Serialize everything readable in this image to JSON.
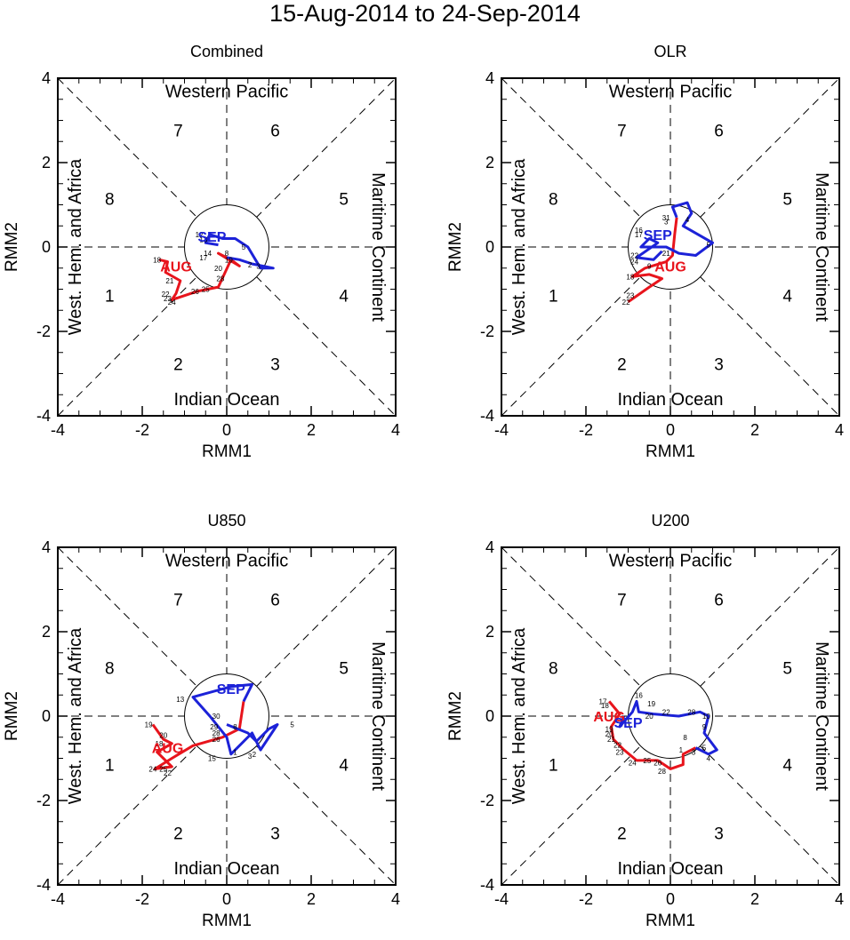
{
  "title": "15-Aug-2014 to 24-Sep-2014",
  "common": {
    "xlabel": "RMM1",
    "ylabel": "RMM2",
    "ticks": [
      "-4",
      "-2",
      "0",
      "2",
      "4"
    ],
    "regions": {
      "top": "Western Pacific",
      "bottom": "Indian Ocean",
      "left": "West. Hem. and Africa",
      "right": "Maritime Continent"
    },
    "phase_labels": [
      "1",
      "2",
      "3",
      "4",
      "5",
      "6",
      "7",
      "8"
    ],
    "colors": {
      "aug": "#e8141c",
      "sep": "#1c22d8"
    }
  },
  "chart_data": [
    {
      "type": "line",
      "title": "Combined",
      "xlabel": "RMM1",
      "ylabel": "RMM2",
      "xlim": [
        -4,
        4
      ],
      "ylim": [
        -4,
        4
      ],
      "series": [
        {
          "name": "AUG",
          "label": "AUG",
          "label_at": [
            -1.2,
            -0.45
          ],
          "color": "#e8141c",
          "points": [
            [
              -1.6,
              -0.3
            ],
            [
              -1.4,
              -0.35
            ],
            [
              -1.45,
              -0.6
            ],
            [
              -1.1,
              -0.8
            ],
            [
              -1.2,
              -1.1
            ],
            [
              -1.3,
              -1.25
            ],
            [
              -0.7,
              -1.05
            ],
            [
              -0.2,
              -0.95
            ],
            [
              0.1,
              -0.3
            ],
            [
              0.3,
              -0.45
            ],
            [
              -0.2,
              -0.15
            ],
            [
              0.0,
              -0.25
            ]
          ]
        },
        {
          "name": "SEP",
          "label": "SEP",
          "label_at": [
            -0.35,
            0.25
          ],
          "color": "#1c22d8",
          "points": [
            [
              0.0,
              -0.25
            ],
            [
              0.3,
              -0.3
            ],
            [
              0.6,
              -0.4
            ],
            [
              1.1,
              -0.5
            ],
            [
              0.8,
              -0.5
            ],
            [
              0.5,
              0.0
            ],
            [
              0.2,
              0.2
            ],
            [
              -0.1,
              0.2
            ],
            [
              -0.4,
              0.3
            ],
            [
              -0.5,
              0.1
            ],
            [
              -0.2,
              0.05
            ]
          ]
        }
      ],
      "day_labels": [
        {
          "t": "18",
          "x": -1.65,
          "y": -0.3
        },
        {
          "t": "21",
          "x": -1.35,
          "y": -0.8
        },
        {
          "t": "22",
          "x": -1.45,
          "y": -1.12
        },
        {
          "t": "23",
          "x": -1.4,
          "y": -1.22
        },
        {
          "t": "24",
          "x": -1.3,
          "y": -1.3
        },
        {
          "t": "26",
          "x": -0.75,
          "y": -1.05
        },
        {
          "t": "28",
          "x": -0.15,
          "y": -0.75
        },
        {
          "t": "25",
          "x": -0.5,
          "y": -1.0
        },
        {
          "t": "12",
          "x": -0.65,
          "y": 0.3
        },
        {
          "t": "13",
          "x": -0.55,
          "y": 0.18
        },
        {
          "t": "17",
          "x": -0.55,
          "y": -0.25
        },
        {
          "t": "14",
          "x": -0.45,
          "y": -0.15
        },
        {
          "t": "19",
          "x": 0.05,
          "y": -0.3
        },
        {
          "t": "20",
          "x": -0.2,
          "y": -0.5
        },
        {
          "t": "8",
          "x": 0.0,
          "y": -0.15
        },
        {
          "t": "5",
          "x": 0.4,
          "y": 0.0
        },
        {
          "t": "3",
          "x": 0.75,
          "y": -0.45
        },
        {
          "t": "2",
          "x": 0.55,
          "y": -0.42
        }
      ]
    },
    {
      "type": "line",
      "title": "OLR",
      "xlabel": "RMM1",
      "ylabel": "RMM2",
      "xlim": [
        -4,
        4
      ],
      "ylim": [
        -4,
        4
      ],
      "series": [
        {
          "name": "AUG",
          "label": "AUG",
          "label_at": [
            0.0,
            -0.45
          ],
          "color": "#e8141c",
          "points": [
            [
              -1.0,
              -1.3
            ],
            [
              -0.5,
              -0.95
            ],
            [
              -0.2,
              -0.75
            ],
            [
              -0.5,
              -0.65
            ],
            [
              -0.9,
              -0.7
            ],
            [
              -0.6,
              -0.5
            ],
            [
              -0.1,
              -0.35
            ],
            [
              0.05,
              -0.2
            ],
            [
              0.1,
              0.3
            ],
            [
              0.15,
              0.7
            ]
          ]
        },
        {
          "name": "SEP",
          "label": "SEP",
          "label_at": [
            -0.3,
            0.3
          ],
          "color": "#1c22d8",
          "points": [
            [
              0.15,
              0.7
            ],
            [
              0.05,
              0.95
            ],
            [
              0.4,
              1.05
            ],
            [
              0.5,
              0.8
            ],
            [
              0.3,
              0.5
            ],
            [
              1.0,
              0.1
            ],
            [
              0.6,
              -0.2
            ],
            [
              0.2,
              -0.15
            ],
            [
              -0.1,
              0.0
            ],
            [
              -0.7,
              0.0
            ],
            [
              -0.5,
              0.2
            ],
            [
              -0.3,
              0.1
            ],
            [
              -0.8,
              -0.25
            ],
            [
              -0.4,
              -0.3
            ],
            [
              -0.2,
              -0.1
            ]
          ]
        }
      ],
      "day_labels": [
        {
          "t": "22",
          "x": -1.05,
          "y": -1.3
        },
        {
          "t": "23",
          "x": -0.95,
          "y": -1.15
        },
        {
          "t": "18",
          "x": -0.95,
          "y": -0.7
        },
        {
          "t": "16",
          "x": -0.75,
          "y": 0.4
        },
        {
          "t": "17",
          "x": -0.75,
          "y": 0.3
        },
        {
          "t": "22",
          "x": -0.85,
          "y": -0.2
        },
        {
          "t": "24",
          "x": -0.85,
          "y": -0.35
        },
        {
          "t": "31",
          "x": -0.1,
          "y": 0.7
        },
        {
          "t": "3",
          "x": -0.1,
          "y": 0.6
        },
        {
          "t": "4",
          "x": 0.4,
          "y": 0.65
        },
        {
          "t": "5",
          "x": 0.9,
          "y": 0.05
        },
        {
          "t": "21",
          "x": -0.1,
          "y": -0.15
        },
        {
          "t": "9",
          "x": -0.5,
          "y": -0.45
        }
      ]
    },
    {
      "type": "line",
      "title": "U850",
      "xlabel": "RMM1",
      "ylabel": "RMM2",
      "xlim": [
        -4,
        4
      ],
      "ylim": [
        -4,
        4
      ],
      "series": [
        {
          "name": "AUG",
          "label": "AUG",
          "label_at": [
            -1.4,
            -0.75
          ],
          "color": "#e8141c",
          "points": [
            [
              -1.75,
              -0.2
            ],
            [
              -1.5,
              -0.55
            ],
            [
              -1.3,
              -0.65
            ],
            [
              -1.65,
              -0.85
            ],
            [
              -1.3,
              -1.2
            ],
            [
              -1.7,
              -1.25
            ],
            [
              -1.3,
              -1.0
            ],
            [
              -0.8,
              -0.7
            ],
            [
              -0.1,
              -0.5
            ],
            [
              0.3,
              -0.3
            ],
            [
              0.4,
              0.35
            ]
          ]
        },
        {
          "name": "SEP",
          "label": "SEP",
          "label_at": [
            0.1,
            0.65
          ],
          "color": "#1c22d8",
          "points": [
            [
              0.4,
              0.35
            ],
            [
              0.6,
              0.75
            ],
            [
              0.1,
              0.7
            ],
            [
              -0.8,
              0.45
            ],
            [
              -0.4,
              0.0
            ],
            [
              0.0,
              -0.5
            ],
            [
              0.1,
              -0.9
            ],
            [
              0.6,
              -0.4
            ],
            [
              0.8,
              -0.8
            ],
            [
              1.2,
              -0.2
            ],
            [
              1.0,
              -0.3
            ],
            [
              0.7,
              -0.6
            ],
            [
              0.5,
              -0.4
            ],
            [
              0.0,
              -0.2
            ]
          ]
        }
      ],
      "day_labels": [
        {
          "t": "19",
          "x": -1.85,
          "y": -0.2
        },
        {
          "t": "20",
          "x": -1.5,
          "y": -0.45
        },
        {
          "t": "18",
          "x": -1.6,
          "y": -0.65
        },
        {
          "t": "24",
          "x": -1.75,
          "y": -1.25
        },
        {
          "t": "25",
          "x": -1.5,
          "y": -1.25
        },
        {
          "t": "22",
          "x": -1.4,
          "y": -1.35
        },
        {
          "t": "13",
          "x": -1.1,
          "y": 0.4
        },
        {
          "t": "30",
          "x": -0.25,
          "y": 0.0
        },
        {
          "t": "29",
          "x": -0.3,
          "y": -0.25
        },
        {
          "t": "28",
          "x": -0.25,
          "y": -0.4
        },
        {
          "t": "26",
          "x": -0.25,
          "y": -0.55
        },
        {
          "t": "15",
          "x": -0.35,
          "y": -1.0
        },
        {
          "t": "1",
          "x": 0.2,
          "y": -0.85
        },
        {
          "t": "3",
          "x": 0.55,
          "y": -0.95
        },
        {
          "t": "2",
          "x": 0.65,
          "y": -0.9
        },
        {
          "t": "5",
          "x": 1.55,
          "y": -0.2
        },
        {
          "t": "8",
          "x": 0.2,
          "y": -0.25
        }
      ]
    },
    {
      "type": "line",
      "title": "U200",
      "xlabel": "RMM1",
      "ylabel": "RMM2",
      "xlim": [
        -4,
        4
      ],
      "ylim": [
        -4,
        4
      ],
      "series": [
        {
          "name": "AUG",
          "label": "AUG",
          "label_at": [
            -1.45,
            0.0
          ],
          "color": "#e8141c",
          "points": [
            [
              -1.45,
              0.35
            ],
            [
              -1.2,
              0.05
            ],
            [
              -1.4,
              -0.25
            ],
            [
              -1.35,
              -0.55
            ],
            [
              -1.1,
              -0.8
            ],
            [
              -0.8,
              -1.05
            ],
            [
              -0.3,
              -1.05
            ],
            [
              0.0,
              -1.25
            ],
            [
              0.3,
              -1.15
            ],
            [
              0.3,
              -0.9
            ],
            [
              0.6,
              -0.75
            ]
          ]
        },
        {
          "name": "SEP",
          "label": "SEP",
          "label_at": [
            -1.0,
            -0.15
          ],
          "color": "#1c22d8",
          "points": [
            [
              0.6,
              -0.75
            ],
            [
              0.9,
              -0.9
            ],
            [
              1.1,
              -0.8
            ],
            [
              0.8,
              -0.4
            ],
            [
              0.9,
              0.0
            ],
            [
              0.7,
              0.1
            ],
            [
              0.2,
              0.0
            ],
            [
              -0.4,
              0.05
            ],
            [
              -0.75,
              0.1
            ],
            [
              -0.8,
              0.35
            ],
            [
              -0.9,
              0.1
            ],
            [
              -1.2,
              -0.25
            ],
            [
              -1.1,
              0.0
            ]
          ]
        }
      ],
      "day_labels": [
        {
          "t": "17",
          "x": -1.6,
          "y": 0.35
        },
        {
          "t": "18",
          "x": -1.55,
          "y": 0.25
        },
        {
          "t": "19",
          "x": -1.45,
          "y": -0.3
        },
        {
          "t": "20",
          "x": -1.45,
          "y": -0.42
        },
        {
          "t": "21",
          "x": -1.4,
          "y": -0.55
        },
        {
          "t": "22",
          "x": -1.25,
          "y": -0.68
        },
        {
          "t": "23",
          "x": -1.2,
          "y": -0.85
        },
        {
          "t": "24",
          "x": -0.9,
          "y": -1.1
        },
        {
          "t": "25",
          "x": -0.55,
          "y": -1.05
        },
        {
          "t": "26",
          "x": -0.3,
          "y": -1.1
        },
        {
          "t": "28",
          "x": -0.2,
          "y": -1.3
        },
        {
          "t": "1",
          "x": 0.25,
          "y": -0.8
        },
        {
          "t": "3",
          "x": 0.55,
          "y": -0.85
        },
        {
          "t": "5",
          "x": 0.8,
          "y": -0.75
        },
        {
          "t": "4",
          "x": 0.9,
          "y": -1.0
        },
        {
          "t": "8",
          "x": 0.35,
          "y": -0.5
        },
        {
          "t": "9",
          "x": 0.8,
          "y": -0.25
        },
        {
          "t": "10",
          "x": 0.85,
          "y": 0.0
        },
        {
          "t": "19",
          "x": -0.45,
          "y": 0.3
        },
        {
          "t": "16",
          "x": -0.75,
          "y": 0.5
        },
        {
          "t": "20",
          "x": -0.5,
          "y": 0.0
        },
        {
          "t": "22",
          "x": -0.1,
          "y": 0.1
        },
        {
          "t": "28",
          "x": 0.5,
          "y": 0.1
        }
      ]
    }
  ]
}
